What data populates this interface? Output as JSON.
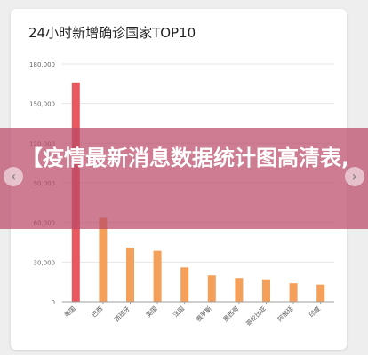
{
  "chart_data": {
    "type": "bar",
    "title": "24小时新增确诊国家TOP10",
    "categories": [
      "美国",
      "巴西",
      "西班牙",
      "英国",
      "法国",
      "俄罗斯",
      "墨西哥",
      "哥伦比亚",
      "阿根廷",
      "印度"
    ],
    "values": [
      166000,
      63500,
      41000,
      38500,
      26000,
      20000,
      18000,
      17000,
      14000,
      13000
    ],
    "ylim": [
      0,
      180000
    ],
    "yticks": [
      0,
      30000,
      60000,
      90000,
      120000,
      150000,
      180000
    ],
    "ytick_labels": [
      "0",
      "30,000",
      "60,000",
      "90,000",
      "120,000",
      "150,000",
      "180,000"
    ],
    "grid": true,
    "colors": {
      "highlight": "#e8595f",
      "bar": "#f4a05a",
      "grid": "#e6e6e6",
      "axis": "#9e9e9e"
    }
  },
  "banner": {
    "text": "【疫情最新消息数据统计图高清表,疫情最"
  },
  "nav": {
    "prev_icon": "‹",
    "next_icon": "›"
  }
}
